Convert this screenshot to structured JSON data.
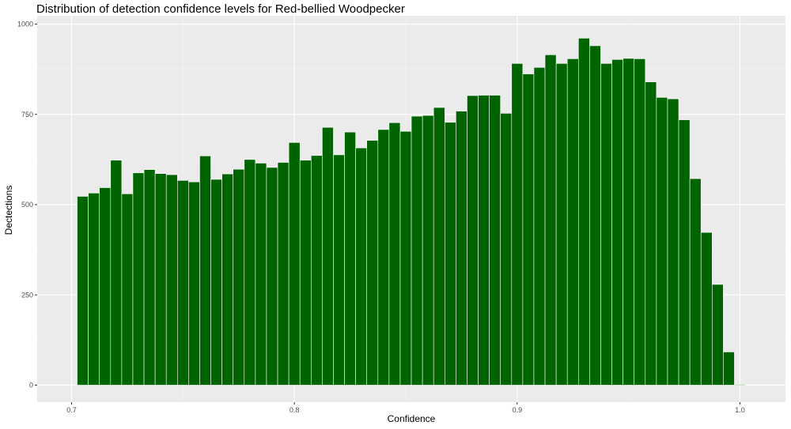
{
  "chart_data": {
    "type": "bar",
    "title": "Distribution of detection confidence levels for Red-bellied Woodpecker",
    "xlabel": "Confidence",
    "ylabel": "Dectections",
    "xlim": [
      0.7,
      1.0
    ],
    "ylim": [
      0,
      1000
    ],
    "x_ticks": [
      0.7,
      0.8,
      0.9,
      1.0
    ],
    "x_tick_labels": [
      "0.7",
      "0.8",
      "0.9",
      "1.0"
    ],
    "y_ticks": [
      0,
      250,
      500,
      750,
      1000
    ],
    "y_tick_labels": [
      "0",
      "250",
      "500",
      "750",
      "1000"
    ],
    "grid": true,
    "bar_color": "#006400",
    "bar_edge_color": "#ffffff",
    "panel_background": "#ebebeb",
    "bin_width": 0.005,
    "x": [
      0.705,
      0.71,
      0.715,
      0.72,
      0.725,
      0.73,
      0.735,
      0.74,
      0.745,
      0.75,
      0.755,
      0.76,
      0.765,
      0.77,
      0.775,
      0.78,
      0.785,
      0.79,
      0.795,
      0.8,
      0.805,
      0.81,
      0.815,
      0.82,
      0.825,
      0.83,
      0.835,
      0.84,
      0.845,
      0.85,
      0.855,
      0.86,
      0.865,
      0.87,
      0.875,
      0.88,
      0.885,
      0.89,
      0.895,
      0.9,
      0.905,
      0.91,
      0.915,
      0.92,
      0.925,
      0.93,
      0.935,
      0.94,
      0.945,
      0.95,
      0.955,
      0.96,
      0.965,
      0.97,
      0.975,
      0.98,
      0.985,
      0.99,
      0.995,
      1.0
    ],
    "values": [
      523,
      532,
      547,
      623,
      530,
      588,
      597,
      586,
      583,
      567,
      563,
      635,
      570,
      585,
      598,
      625,
      615,
      603,
      617,
      672,
      623,
      636,
      714,
      638,
      701,
      657,
      678,
      708,
      727,
      703,
      745,
      747,
      769,
      728,
      759,
      802,
      803,
      803,
      753,
      891,
      862,
      880,
      915,
      891,
      904,
      961,
      940,
      891,
      902,
      905,
      904,
      840,
      797,
      793,
      735,
      572,
      423,
      279,
      92,
      2
    ]
  }
}
